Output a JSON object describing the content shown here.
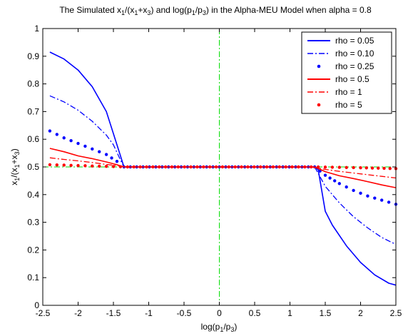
{
  "chart_data": {
    "type": "line",
    "title": {
      "parts": [
        {
          "t": "The Simulated x"
        },
        {
          "t": "1",
          "sub": true
        },
        {
          "t": "/(x"
        },
        {
          "t": "1",
          "sub": true
        },
        {
          "t": "+x"
        },
        {
          "t": "3",
          "sub": true
        },
        {
          "t": ") and log(p"
        },
        {
          "t": "1",
          "sub": true
        },
        {
          "t": "/p"
        },
        {
          "t": "3",
          "sub": true
        },
        {
          "t": ") in the Alpha-MEU Model when alpha = 0.8"
        }
      ]
    },
    "xlabel": {
      "parts": [
        {
          "t": "log(p"
        },
        {
          "t": "1",
          "sub": true
        },
        {
          "t": "/p"
        },
        {
          "t": "3",
          "sub": true
        },
        {
          "t": ")"
        }
      ]
    },
    "ylabel": {
      "parts": [
        {
          "t": "x"
        },
        {
          "t": "1",
          "sub": true
        },
        {
          "t": "/(x"
        },
        {
          "t": "1",
          "sub": true
        },
        {
          "t": "+x"
        },
        {
          "t": "3",
          "sub": true
        },
        {
          "t": ")"
        }
      ]
    },
    "xlim": [
      -2.5,
      2.5
    ],
    "ylim": [
      0,
      1
    ],
    "xticks": [
      -2.5,
      -2,
      -1.5,
      -1,
      -0.5,
      0,
      0.5,
      1,
      1.5,
      2,
      2.5
    ],
    "xtick_labels": [
      "-2.5",
      "-2",
      "-1.5",
      "-1",
      "-0.5",
      "0",
      "0.5",
      "1",
      "1.5",
      "2",
      "2.5"
    ],
    "yticks": [
      0,
      0.1,
      0.2,
      0.3,
      0.4,
      0.5,
      0.6,
      0.7,
      0.8,
      0.9,
      1
    ],
    "ytick_labels": [
      "0",
      "0.1",
      "0.2",
      "0.3",
      "0.4",
      "0.5",
      "0.6",
      "0.7",
      "0.8",
      "0.9",
      "1"
    ],
    "grid": false,
    "legend_position": "top-right",
    "reference_lines": [
      {
        "orientation": "vertical",
        "value": 0,
        "color": "#00dd00",
        "style": "dashdot"
      },
      {
        "orientation": "horizontal",
        "value": 0.5,
        "color": "#00dd00",
        "style": "dashdot"
      }
    ],
    "series": [
      {
        "name": "rho = 0.05",
        "color": "#0000ff",
        "style": "solid",
        "points": [
          [
            -2.4,
            0.915
          ],
          [
            -2.2,
            0.89
          ],
          [
            -2.0,
            0.85
          ],
          [
            -1.8,
            0.79
          ],
          [
            -1.6,
            0.7
          ],
          [
            -1.5,
            0.62
          ],
          [
            -1.4,
            0.54
          ],
          [
            -1.35,
            0.5
          ],
          [
            1.35,
            0.5
          ],
          [
            1.4,
            0.49
          ],
          [
            1.5,
            0.34
          ],
          [
            1.6,
            0.29
          ],
          [
            1.8,
            0.215
          ],
          [
            2.0,
            0.155
          ],
          [
            2.2,
            0.11
          ],
          [
            2.4,
            0.08
          ],
          [
            2.5,
            0.073
          ]
        ]
      },
      {
        "name": "rho = 0.10",
        "color": "#0000ff",
        "style": "dashdot",
        "points": [
          [
            -2.4,
            0.757
          ],
          [
            -2.2,
            0.735
          ],
          [
            -2.0,
            0.705
          ],
          [
            -1.8,
            0.665
          ],
          [
            -1.6,
            0.615
          ],
          [
            -1.5,
            0.58
          ],
          [
            -1.4,
            0.525
          ],
          [
            -1.35,
            0.5
          ],
          [
            1.35,
            0.5
          ],
          [
            1.5,
            0.43
          ],
          [
            1.7,
            0.37
          ],
          [
            1.9,
            0.32
          ],
          [
            2.1,
            0.28
          ],
          [
            2.3,
            0.245
          ],
          [
            2.5,
            0.22
          ]
        ]
      },
      {
        "name": "rho = 0.25",
        "color": "#0000ff",
        "style": "dotted",
        "points": [
          [
            -2.4,
            0.63
          ],
          [
            -2.2,
            0.605
          ],
          [
            -2.0,
            0.585
          ],
          [
            -1.8,
            0.565
          ],
          [
            -1.6,
            0.545
          ],
          [
            -1.45,
            0.52
          ],
          [
            -1.35,
            0.5
          ],
          [
            1.35,
            0.5
          ],
          [
            1.5,
            0.47
          ],
          [
            1.7,
            0.44
          ],
          [
            1.9,
            0.415
          ],
          [
            2.1,
            0.395
          ],
          [
            2.3,
            0.38
          ],
          [
            2.5,
            0.365
          ]
        ]
      },
      {
        "name": "rho = 0.5",
        "color": "#ff0000",
        "style": "solid",
        "points": [
          [
            -2.4,
            0.567
          ],
          [
            -2.2,
            0.555
          ],
          [
            -2.0,
            0.54
          ],
          [
            -1.8,
            0.53
          ],
          [
            -1.6,
            0.518
          ],
          [
            -1.45,
            0.508
          ],
          [
            -1.35,
            0.5
          ],
          [
            1.35,
            0.5
          ],
          [
            1.5,
            0.483
          ],
          [
            1.7,
            0.468
          ],
          [
            1.9,
            0.458
          ],
          [
            2.1,
            0.447
          ],
          [
            2.3,
            0.435
          ],
          [
            2.5,
            0.425
          ]
        ]
      },
      {
        "name": "rho = 1",
        "color": "#ff0000",
        "style": "dashdot",
        "points": [
          [
            -2.4,
            0.533
          ],
          [
            -2.2,
            0.527
          ],
          [
            -2.0,
            0.522
          ],
          [
            -1.8,
            0.516
          ],
          [
            -1.6,
            0.509
          ],
          [
            -1.4,
            0.503
          ],
          [
            -1.3,
            0.5
          ],
          [
            1.3,
            0.5
          ],
          [
            1.5,
            0.491
          ],
          [
            1.7,
            0.484
          ],
          [
            1.9,
            0.478
          ],
          [
            2.1,
            0.472
          ],
          [
            2.3,
            0.466
          ],
          [
            2.5,
            0.46
          ]
        ]
      },
      {
        "name": "rho = 5",
        "color": "#ff0000",
        "style": "dotted",
        "points": [
          [
            -2.4,
            0.508
          ],
          [
            -2.0,
            0.505
          ],
          [
            -1.6,
            0.502
          ],
          [
            -1.3,
            0.5
          ],
          [
            1.3,
            0.5
          ],
          [
            1.6,
            0.499
          ],
          [
            2.0,
            0.497
          ],
          [
            2.5,
            0.494
          ]
        ]
      }
    ]
  }
}
